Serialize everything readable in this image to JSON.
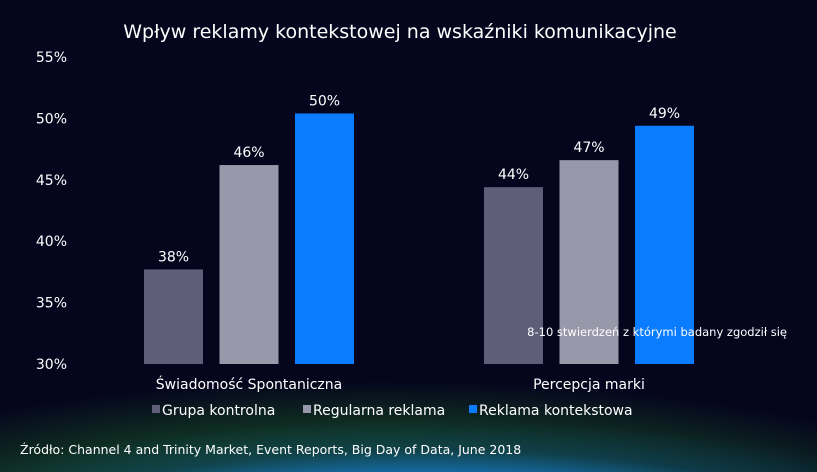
{
  "chart_data": {
    "type": "bar",
    "title": "Wpływ reklamy kontekstowej na wskaźniki komunikacyjne",
    "categories": [
      "Świadomość Spontaniczna",
      "Percepcja marki"
    ],
    "series": [
      {
        "name": "Grupa kontrolna",
        "values": [
          37.7,
          44.4
        ],
        "labels": [
          "38%",
          "44%"
        ],
        "color": "#5f5e78"
      },
      {
        "name": "Regularna reklama",
        "values": [
          46.2,
          46.6
        ],
        "labels": [
          "46%",
          "47%"
        ],
        "color": "#9998ab"
      },
      {
        "name": "Reklama kontekstowa",
        "values": [
          50.4,
          49.4
        ],
        "labels": [
          "50%",
          "49%"
        ],
        "color": "#0a7cff"
      }
    ],
    "ylim": [
      30,
      55
    ],
    "yticks": [
      "30%",
      "35%",
      "40%",
      "45%",
      "50%",
      "55%"
    ],
    "grid": false,
    "legend": "bottom",
    "annotation": "8-10 stwierdzeń z którymi badany zgodził się",
    "source": "Źródło: Channel 4 and Trinity Market, Event Reports, Big Day of Data, June 2018"
  }
}
